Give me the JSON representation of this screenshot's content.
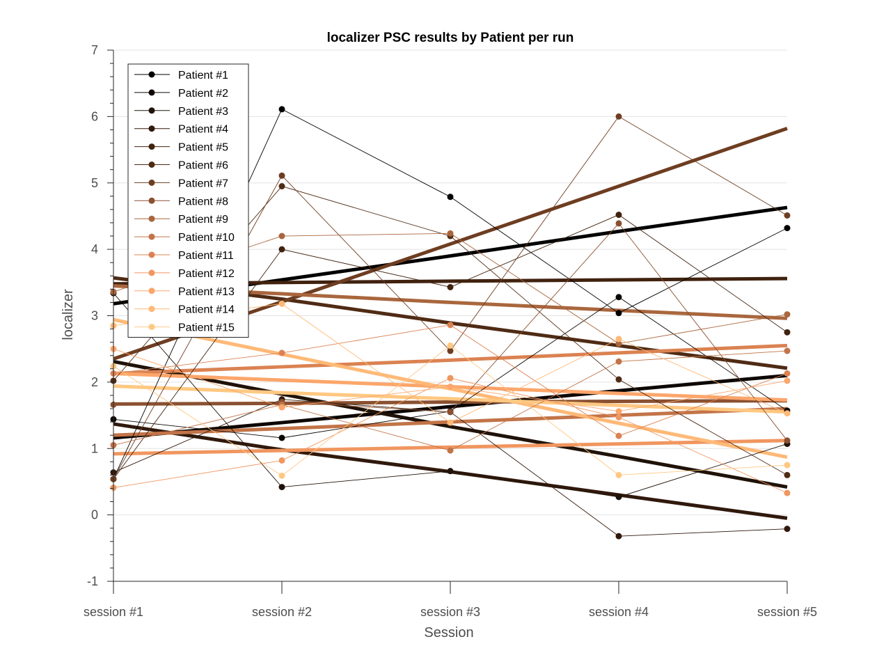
{
  "chart_data": {
    "type": "line",
    "title": "localizer  PSC results by Patient per run",
    "xlabel": "Session",
    "ylabel": "localizer",
    "categories": [
      "session #1",
      "session #2",
      "session #3",
      "session #4",
      "session #5"
    ],
    "ylim": [
      -1,
      7
    ],
    "yticks": [
      -1,
      0,
      1,
      2,
      3,
      4,
      5,
      6,
      7
    ],
    "grid": "horizontal",
    "legend_position": "top-left",
    "series": [
      {
        "name": "Patient #1",
        "color": "#000000",
        "values": [
          0.54,
          6.11,
          4.79,
          3.04,
          4.32
        ],
        "trend": [
          3.18,
          3.54,
          3.9,
          4.27,
          4.63
        ]
      },
      {
        "name": "Patient #2",
        "color": "#0d0703",
        "values": [
          1.44,
          1.16,
          1.56,
          3.28,
          1.57
        ],
        "trend": [
          1.16,
          1.39,
          1.63,
          1.87,
          2.1
        ]
      },
      {
        "name": "Patient #3",
        "color": "#1f1208",
        "values": [
          3.34,
          0.42,
          0.66,
          0.27,
          1.07
        ],
        "trend": [
          2.31,
          1.82,
          1.33,
          0.88,
          0.42
        ]
      },
      {
        "name": "Patient #4",
        "color": "#30190c",
        "values": [
          0.64,
          1.74,
          1.55,
          -0.32,
          -0.21
        ],
        "trend": [
          1.37,
          0.98,
          0.65,
          0.3,
          -0.05
        ]
      },
      {
        "name": "Patient #5",
        "color": "#40220f",
        "values": [
          0.54,
          4.0,
          3.43,
          4.52,
          2.75
        ],
        "trend": [
          3.48,
          3.5,
          3.52,
          3.54,
          3.56
        ]
      },
      {
        "name": "Patient #6",
        "color": "#4f2b14",
        "values": [
          2.02,
          4.95,
          4.2,
          2.04,
          0.6
        ],
        "trend": [
          3.57,
          3.25,
          2.89,
          2.55,
          2.21
        ]
      },
      {
        "name": "Patient #7",
        "color": "#6e3d21",
        "values": [
          0.54,
          5.11,
          2.47,
          6.0,
          4.51
        ],
        "trend": [
          2.35,
          3.21,
          4.08,
          4.95,
          5.82
        ]
      },
      {
        "name": "Patient #8",
        "color": "#8a5030",
        "values": [
          1.66,
          1.7,
          1.55,
          4.39,
          1.12
        ],
        "trend": [
          1.67,
          1.68,
          1.7,
          1.71,
          1.72
        ]
      },
      {
        "name": "Patient #9",
        "color": "#a9663d",
        "values": [
          3.36,
          4.2,
          4.24,
          2.58,
          3.02
        ],
        "trend": [
          3.45,
          3.33,
          3.2,
          3.08,
          2.96
        ]
      },
      {
        "name": "Patient #10",
        "color": "#c27448",
        "values": [
          1.05,
          1.66,
          0.97,
          2.31,
          2.47
        ],
        "trend": [
          1.2,
          1.3,
          1.4,
          1.5,
          1.6
        ]
      },
      {
        "name": "Patient #11",
        "color": "#db8252",
        "values": [
          2.13,
          2.44,
          2.86,
          1.19,
          2.13
        ],
        "trend": [
          2.13,
          2.23,
          2.33,
          2.44,
          2.55
        ]
      },
      {
        "name": "Patient #12",
        "color": "#f09660",
        "values": [
          0.41,
          0.82,
          2.06,
          1.47,
          0.33
        ],
        "trend": [
          0.92,
          0.97,
          1.02,
          1.07,
          1.12
        ]
      },
      {
        "name": "Patient #13",
        "color": "#fca66b",
        "values": [
          2.5,
          1.62,
          1.93,
          1.56,
          2.02
        ],
        "trend": [
          2.13,
          2.03,
          1.93,
          1.83,
          1.73
        ]
      },
      {
        "name": "Patient #14",
        "color": "#ffb977",
        "values": [
          2.85,
          3.18,
          1.39,
          2.65,
          1.53
        ],
        "trend": [
          2.94,
          2.42,
          1.9,
          1.38,
          0.87
        ]
      },
      {
        "name": "Patient #15",
        "color": "#ffc882",
        "values": [
          2.24,
          0.59,
          2.55,
          0.6,
          0.75
        ],
        "trend": [
          1.94,
          1.84,
          1.75,
          1.65,
          1.55
        ]
      }
    ]
  }
}
